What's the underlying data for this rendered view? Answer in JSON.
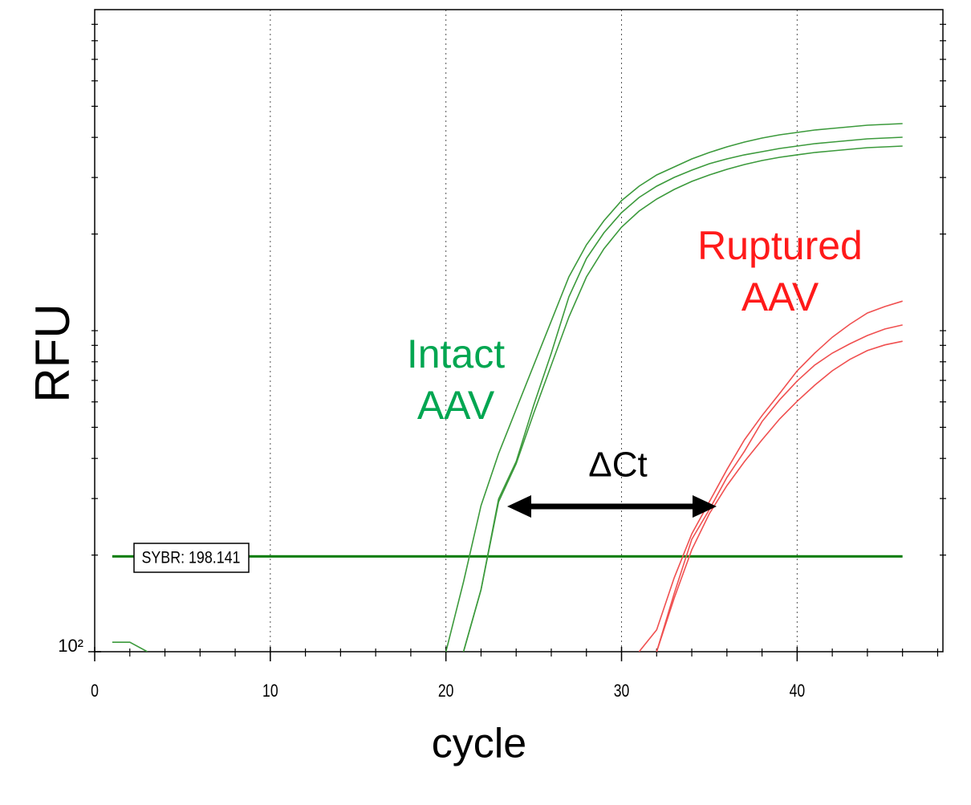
{
  "chart_data": {
    "type": "line",
    "x_label": "cycle",
    "y_label": "RFU",
    "log_scale_y": true,
    "grid": true,
    "xlim": [
      0,
      48.3
    ],
    "ylim": [
      100,
      10000
    ],
    "xticks": [
      0,
      10,
      20,
      30,
      40
    ],
    "xminorticks": [
      2,
      4,
      6,
      8,
      12,
      14,
      16,
      18,
      22,
      24,
      26,
      28,
      32,
      34,
      36,
      38,
      42,
      44,
      46,
      48
    ],
    "yticks": [
      {
        "value": 100,
        "label": "10²"
      }
    ],
    "yminorticks": [
      200,
      300,
      400,
      500,
      600,
      700,
      800,
      900,
      1000,
      2000,
      3000,
      4000,
      5000,
      6000,
      7000,
      8000,
      9000
    ],
    "threshold": 198.141,
    "threshold_label": "SYBR: 198.141",
    "threshold_color": "#007a00",
    "x": [
      1,
      2,
      3,
      4,
      5,
      6,
      7,
      8,
      9,
      10,
      11,
      12,
      13,
      14,
      15,
      16,
      17,
      18,
      19,
      20,
      21,
      22,
      23,
      24,
      25,
      26,
      27,
      28,
      29,
      30,
      31,
      32,
      33,
      34,
      35,
      36,
      37,
      38,
      39,
      40,
      41,
      42,
      43,
      44,
      45,
      46
    ],
    "series": [
      {
        "color": "#3c9a3c",
        "values": [
          107,
          107,
          100,
          null,
          null,
          null,
          null,
          null,
          null,
          null,
          null,
          null,
          null,
          null,
          null,
          null,
          null,
          null,
          null,
          100,
          165,
          285,
          414,
          569,
          781,
          1072,
          1471,
          1851,
          2200,
          2541,
          2818,
          3055,
          3236,
          3428,
          3589,
          3737,
          3869,
          3981,
          4074,
          4145,
          4217,
          4266,
          4315,
          4365,
          4391,
          4416
        ]
      },
      {
        "color": "#3c9a3c",
        "values": [
          null,
          null,
          null,
          null,
          null,
          null,
          null,
          null,
          null,
          null,
          null,
          null,
          null,
          null,
          null,
          null,
          null,
          null,
          null,
          null,
          100,
          156,
          299,
          391,
          586,
          851,
          1274,
          1679,
          2018,
          2331,
          2600,
          2818,
          3003,
          3162,
          3311,
          3428,
          3529,
          3610,
          3694,
          3758,
          3824,
          3869,
          3914,
          3958,
          3981,
          4004
        ]
      },
      {
        "color": "#3c9a3c",
        "values": [
          null,
          null,
          null,
          null,
          null,
          null,
          null,
          null,
          null,
          null,
          null,
          null,
          null,
          null,
          null,
          null,
          null,
          null,
          null,
          null,
          100,
          156,
          293,
          385,
          553,
          781,
          1103,
          1471,
          1799,
          2101,
          2358,
          2570,
          2754,
          2917,
          3055,
          3181,
          3293,
          3388,
          3467,
          3529,
          3589,
          3631,
          3673,
          3715,
          3737,
          3758
        ]
      },
      {
        "color": "#f05050",
        "values": [
          null,
          null,
          null,
          null,
          null,
          null,
          null,
          null,
          null,
          null,
          null,
          null,
          null,
          null,
          null,
          null,
          null,
          null,
          null,
          null,
          null,
          null,
          null,
          null,
          null,
          null,
          null,
          null,
          null,
          null,
          100,
          117,
          170,
          233,
          293,
          369,
          457,
          544,
          637,
          750,
          851,
          954,
          1047,
          1135,
          1189,
          1236
        ]
      },
      {
        "color": "#f05050",
        "values": [
          null,
          null,
          null,
          null,
          null,
          null,
          null,
          null,
          null,
          null,
          null,
          null,
          null,
          null,
          null,
          null,
          null,
          null,
          null,
          null,
          null,
          null,
          null,
          null,
          null,
          null,
          null,
          null,
          null,
          null,
          null,
          100,
          152,
          224,
          277,
          349,
          421,
          521,
          609,
          697,
          781,
          851,
          910,
          966,
          1012,
          1042
        ]
      },
      {
        "color": "#f05050",
        "values": [
          null,
          null,
          null,
          null,
          null,
          null,
          null,
          null,
          null,
          null,
          null,
          null,
          null,
          null,
          null,
          null,
          null,
          null,
          null,
          null,
          null,
          null,
          null,
          null,
          null,
          null,
          null,
          null,
          null,
          null,
          null,
          100,
          147,
          208,
          269,
          329,
          391,
          457,
          531,
          603,
          676,
          750,
          814,
          867,
          903,
          927
        ]
      }
    ],
    "annotations": [
      {
        "lines": [
          "Intact",
          "AAV"
        ],
        "color": "#00a651"
      },
      {
        "lines": [
          "Ruptured",
          "AAV"
        ],
        "color": "#ff1a1a"
      },
      {
        "lines": [
          "ΔCt"
        ],
        "color": "#000000"
      }
    ]
  }
}
